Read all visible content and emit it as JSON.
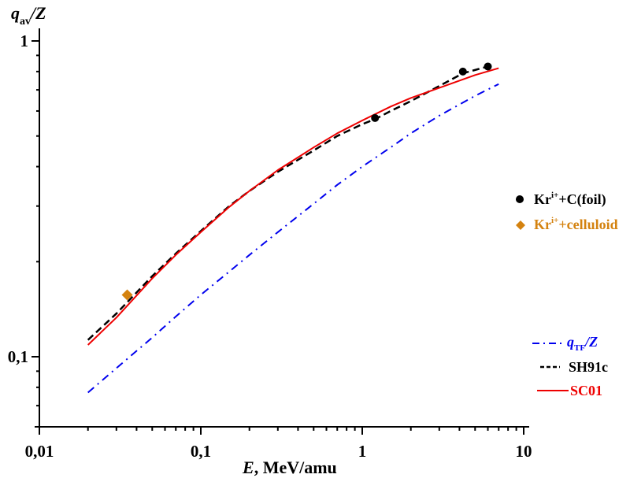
{
  "chart_data": {
    "type": "line",
    "title": "",
    "xlabel": {
      "var": "E",
      "rest": ", MeV/amu"
    },
    "ylabel": {
      "var": "q",
      "sub": "av",
      "rest": "/Z"
    },
    "xscale": "log",
    "yscale": "log",
    "xlim": [
      0.01,
      10
    ],
    "ylim": [
      0.06,
      1.05
    ],
    "x_ticks": [
      {
        "v": 0.01,
        "label": "0,01"
      },
      {
        "v": 0.1,
        "label": "0,1"
      },
      {
        "v": 1,
        "label": "1"
      },
      {
        "v": 10,
        "label": "10"
      }
    ],
    "y_ticks": [
      {
        "v": 0.1,
        "label": "0,1"
      },
      {
        "v": 1,
        "label": "1"
      }
    ],
    "grid": false,
    "series": [
      {
        "name": "qTF/Z",
        "style": "dash-dot",
        "color": "#0000ee",
        "x": [
          0.02,
          0.03,
          0.05,
          0.07,
          0.1,
          0.15,
          0.2,
          0.3,
          0.5,
          0.7,
          1,
          1.5,
          2,
          3,
          5,
          7
        ],
        "y": [
          0.077,
          0.092,
          0.115,
          0.134,
          0.157,
          0.186,
          0.21,
          0.248,
          0.305,
          0.35,
          0.4,
          0.46,
          0.51,
          0.58,
          0.67,
          0.73
        ]
      },
      {
        "name": "SH91c",
        "style": "dashed",
        "color": "#000000",
        "x": [
          0.02,
          0.03,
          0.05,
          0.07,
          0.1,
          0.15,
          0.2,
          0.3,
          0.5,
          0.7,
          1,
          1.2,
          1.5,
          2,
          3,
          4.2,
          6
        ],
        "y": [
          0.113,
          0.137,
          0.18,
          0.212,
          0.25,
          0.3,
          0.335,
          0.385,
          0.45,
          0.5,
          0.545,
          0.565,
          0.6,
          0.645,
          0.72,
          0.79,
          0.83
        ]
      },
      {
        "name": "SC01",
        "style": "solid",
        "color": "#ee0000",
        "x": [
          0.02,
          0.03,
          0.05,
          0.07,
          0.1,
          0.15,
          0.2,
          0.3,
          0.5,
          0.7,
          1,
          1.5,
          2,
          3,
          5,
          7
        ],
        "y": [
          0.109,
          0.133,
          0.177,
          0.21,
          0.248,
          0.298,
          0.335,
          0.39,
          0.46,
          0.51,
          0.56,
          0.62,
          0.66,
          0.71,
          0.78,
          0.82
        ]
      }
    ],
    "points": [
      {
        "name": "Kr^i+ + C(foil)",
        "marker": "circle",
        "color": "#000000",
        "x": [
          1.2,
          4.2,
          6.0
        ],
        "y": [
          0.57,
          0.8,
          0.83
        ]
      },
      {
        "name": "Kr^i+ + celluloid",
        "marker": "diamond",
        "color": "#d4820f",
        "x": [
          0.035
        ],
        "y": [
          0.157
        ]
      }
    ],
    "legend": {
      "placement": "right",
      "entries": [
        {
          "marker": "circle",
          "color": "#000000",
          "base": "Kr",
          "sup": "i+",
          "rest": "+C(foil)"
        },
        {
          "marker": "diamond",
          "color": "#d4820f",
          "base": "Kr",
          "sup": "i+",
          "rest": "+celluloid"
        },
        {
          "line": "dash-dot",
          "color": "#0000ee",
          "base": "q",
          "sub": "TF",
          "rest": "/Z"
        },
        {
          "line": "dashed",
          "color": "#000000",
          "base": "SH91c"
        },
        {
          "line": "solid",
          "color": "#ee0000",
          "base": "SC01"
        }
      ]
    }
  }
}
